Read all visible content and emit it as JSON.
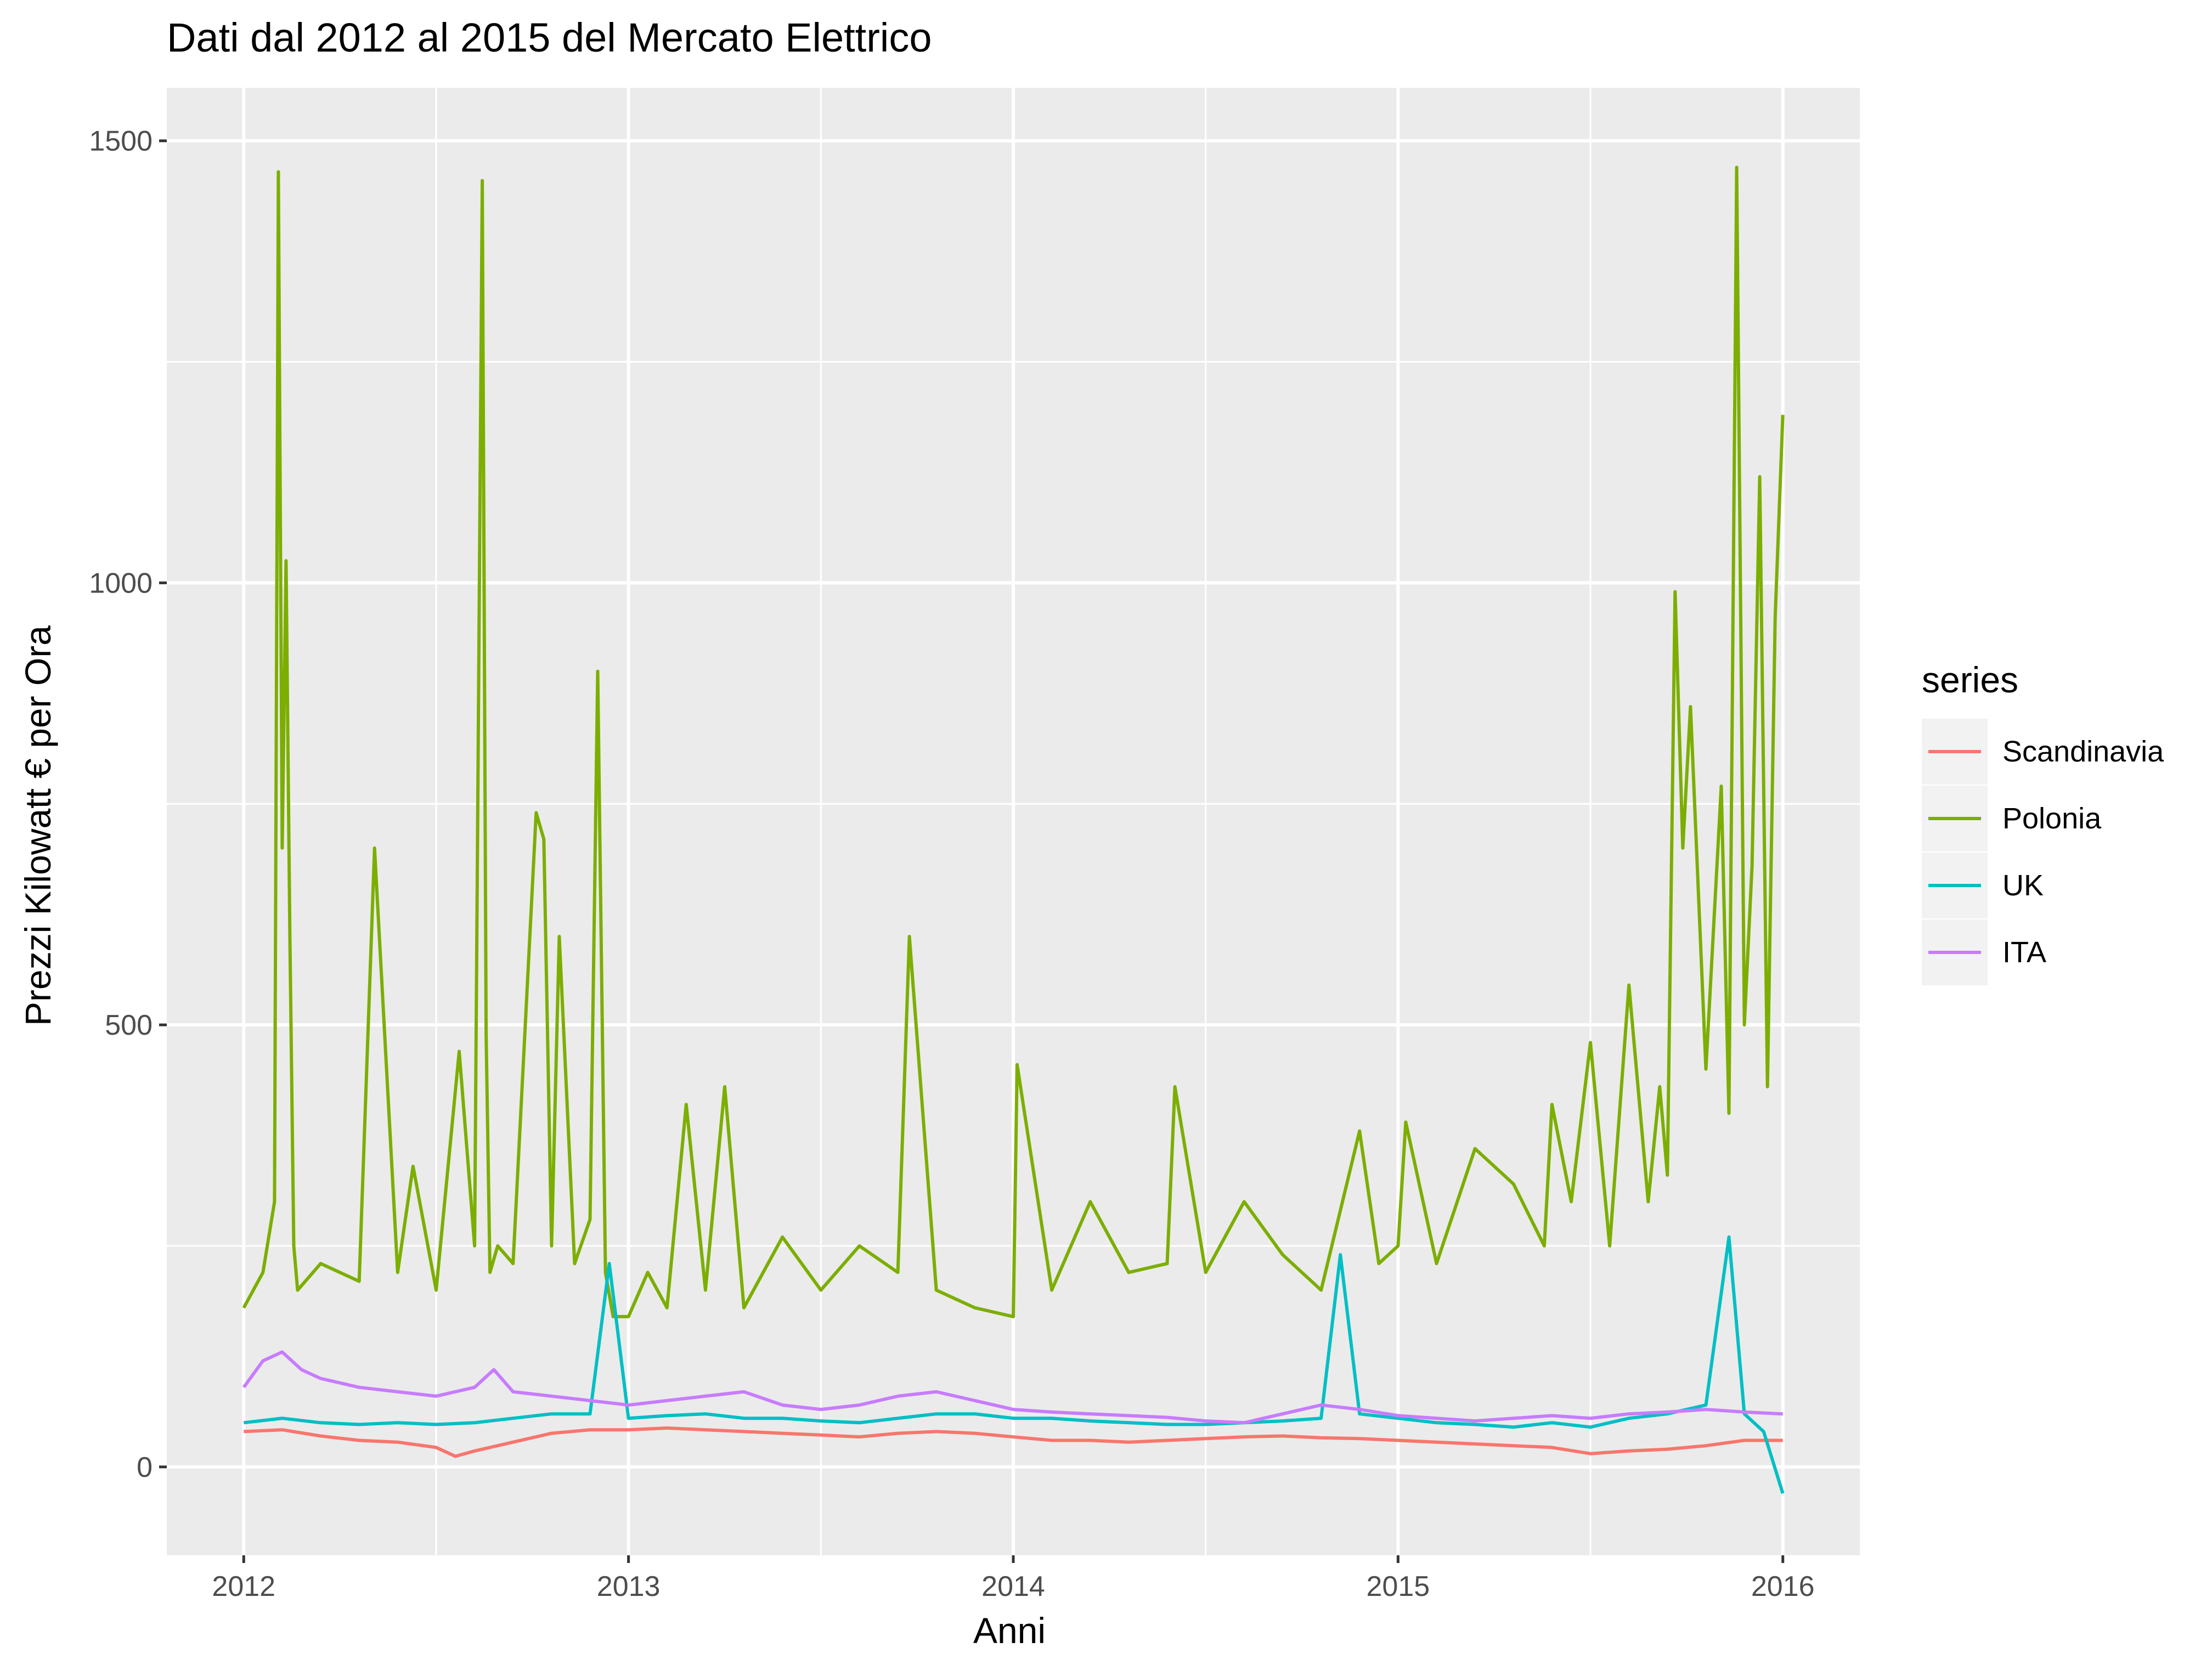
{
  "chart_data": {
    "type": "line",
    "title": "Dati dal 2012 al 2015 del Mercato Elettrico",
    "xlabel": "Anni",
    "ylabel": "Prezzi Kilowatt € per Ora",
    "xlim": [
      2011.8,
      2016.2
    ],
    "ylim": [
      -100,
      1560
    ],
    "x_ticks": [
      2012,
      2013,
      2014,
      2015,
      2016
    ],
    "x_tick_labels": [
      "2012",
      "2013",
      "2014",
      "2015",
      "2016"
    ],
    "y_ticks": [
      0,
      500,
      1000,
      1500
    ],
    "y_tick_labels": [
      "0",
      "500",
      "1000",
      "1500"
    ],
    "grid": true,
    "legend": {
      "title": "series",
      "position": "right",
      "entries": [
        "Scandinavia",
        "Polonia",
        "UK",
        "ITA"
      ]
    },
    "series": [
      {
        "name": "Scandinavia",
        "color": "#F8766D",
        "x": [
          2012.0,
          2012.1,
          2012.2,
          2012.3,
          2012.4,
          2012.5,
          2012.55,
          2012.6,
          2012.7,
          2012.8,
          2012.9,
          2013.0,
          2013.1,
          2013.2,
          2013.3,
          2013.4,
          2013.5,
          2013.6,
          2013.7,
          2013.8,
          2013.9,
          2014.0,
          2014.1,
          2014.2,
          2014.3,
          2014.4,
          2014.5,
          2014.6,
          2014.7,
          2014.8,
          2014.9,
          2015.0,
          2015.1,
          2015.2,
          2015.3,
          2015.4,
          2015.5,
          2015.6,
          2015.7,
          2015.8,
          2015.9,
          2016.0
        ],
        "values": [
          40,
          42,
          35,
          30,
          28,
          22,
          12,
          18,
          28,
          38,
          42,
          42,
          44,
          42,
          40,
          38,
          36,
          34,
          38,
          40,
          38,
          34,
          30,
          30,
          28,
          30,
          32,
          34,
          35,
          33,
          32,
          30,
          28,
          26,
          24,
          22,
          15,
          18,
          20,
          24,
          30,
          30
        ]
      },
      {
        "name": "Polonia",
        "color": "#7CAE00",
        "x": [
          2012.0,
          2012.05,
          2012.08,
          2012.09,
          2012.1,
          2012.11,
          2012.12,
          2012.13,
          2012.14,
          2012.2,
          2012.3,
          2012.34,
          2012.4,
          2012.44,
          2012.5,
          2012.56,
          2012.6,
          2012.62,
          2012.63,
          2012.64,
          2012.66,
          2012.7,
          2012.76,
          2012.78,
          2012.8,
          2012.82,
          2012.86,
          2012.9,
          2012.92,
          2012.94,
          2012.96,
          2013.0,
          2013.05,
          2013.1,
          2013.15,
          2013.2,
          2013.25,
          2013.3,
          2013.4,
          2013.5,
          2013.6,
          2013.7,
          2013.73,
          2013.8,
          2013.9,
          2014.0,
          2014.01,
          2014.1,
          2014.2,
          2014.3,
          2014.4,
          2014.42,
          2014.5,
          2014.6,
          2014.7,
          2014.8,
          2014.9,
          2014.95,
          2015.0,
          2015.02,
          2015.1,
          2015.2,
          2015.3,
          2015.38,
          2015.4,
          2015.45,
          2015.5,
          2015.55,
          2015.6,
          2015.65,
          2015.68,
          2015.7,
          2015.72,
          2015.74,
          2015.76,
          2015.8,
          2015.84,
          2015.86,
          2015.88,
          2015.9,
          2015.92,
          2015.94,
          2015.96,
          2015.98,
          2016.0
        ],
        "values": [
          180,
          220,
          300,
          1465,
          700,
          1025,
          600,
          250,
          200,
          230,
          210,
          700,
          220,
          340,
          200,
          470,
          250,
          1455,
          490,
          220,
          250,
          230,
          740,
          710,
          250,
          600,
          230,
          280,
          900,
          220,
          170,
          170,
          220,
          180,
          410,
          200,
          430,
          180,
          260,
          200,
          250,
          220,
          600,
          200,
          180,
          170,
          455,
          200,
          300,
          220,
          230,
          430,
          220,
          300,
          240,
          200,
          380,
          230,
          250,
          390,
          230,
          360,
          320,
          250,
          410,
          300,
          480,
          250,
          545,
          300,
          430,
          330,
          990,
          700,
          860,
          450,
          770,
          400,
          1470,
          500,
          680,
          1120,
          430,
          960,
          1190
        ]
      },
      {
        "name": "UK",
        "color": "#00BFC4",
        "x": [
          2012.0,
          2012.1,
          2012.2,
          2012.3,
          2012.4,
          2012.5,
          2012.6,
          2012.7,
          2012.8,
          2012.9,
          2012.95,
          2013.0,
          2013.1,
          2013.2,
          2013.3,
          2013.4,
          2013.5,
          2013.6,
          2013.7,
          2013.8,
          2013.9,
          2014.0,
          2014.1,
          2014.2,
          2014.3,
          2014.4,
          2014.5,
          2014.6,
          2014.7,
          2014.8,
          2014.85,
          2014.9,
          2015.0,
          2015.1,
          2015.2,
          2015.3,
          2015.4,
          2015.5,
          2015.6,
          2015.7,
          2015.8,
          2015.86,
          2015.9,
          2015.95,
          2016.0
        ],
        "values": [
          50,
          55,
          50,
          48,
          50,
          48,
          50,
          55,
          60,
          60,
          230,
          55,
          58,
          60,
          55,
          55,
          52,
          50,
          55,
          60,
          60,
          55,
          55,
          52,
          50,
          48,
          48,
          50,
          52,
          55,
          240,
          60,
          55,
          50,
          48,
          45,
          50,
          45,
          55,
          60,
          70,
          260,
          60,
          40,
          -30
        ]
      },
      {
        "name": "ITA",
        "color": "#C77CFF",
        "x": [
          2012.0,
          2012.05,
          2012.1,
          2012.15,
          2012.2,
          2012.3,
          2012.4,
          2012.5,
          2012.6,
          2012.65,
          2012.7,
          2012.8,
          2012.9,
          2013.0,
          2013.1,
          2013.2,
          2013.3,
          2013.4,
          2013.5,
          2013.6,
          2013.7,
          2013.8,
          2013.9,
          2014.0,
          2014.1,
          2014.2,
          2014.3,
          2014.4,
          2014.5,
          2014.6,
          2014.7,
          2014.8,
          2014.9,
          2015.0,
          2015.1,
          2015.2,
          2015.3,
          2015.4,
          2015.5,
          2015.6,
          2015.7,
          2015.8,
          2015.9,
          2016.0
        ],
        "values": [
          90,
          120,
          130,
          110,
          100,
          90,
          85,
          80,
          90,
          110,
          85,
          80,
          75,
          70,
          75,
          80,
          85,
          70,
          65,
          70,
          80,
          85,
          75,
          65,
          62,
          60,
          58,
          56,
          52,
          50,
          60,
          70,
          65,
          58,
          55,
          52,
          55,
          58,
          55,
          60,
          62,
          65,
          62,
          60
        ]
      }
    ]
  }
}
